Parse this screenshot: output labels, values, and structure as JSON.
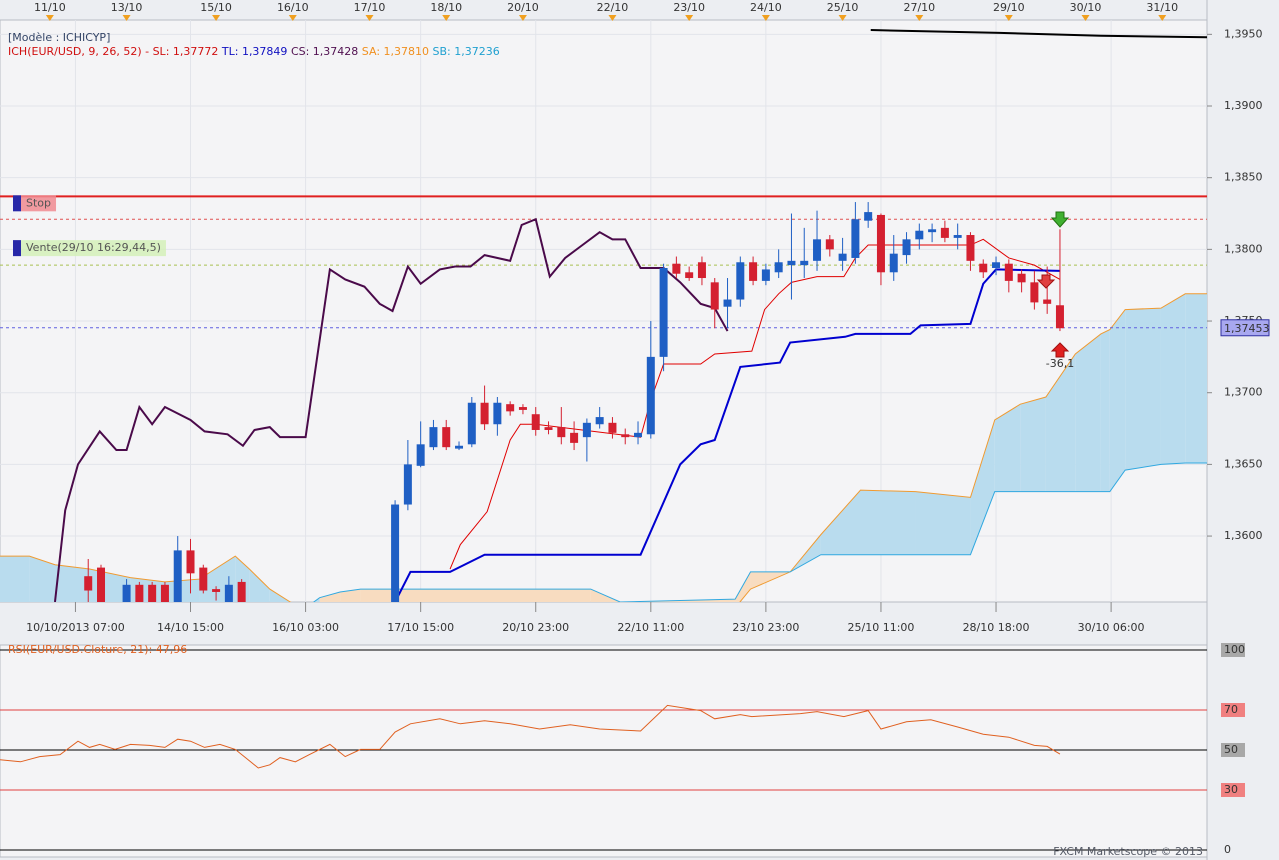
{
  "chart_data": [
    {
      "type": "candlestick",
      "header": "[Modèle : ICHICYP]",
      "indicator_label": {
        "name": "ICH(EUR/USD, 9, 26, 52) -",
        "sl": "SL: 1,37772",
        "tl": "TL: 1,37849",
        "cs": "CS: 1,37428",
        "sa": "SA: 1,37810",
        "sb": "SB: 1,37236"
      },
      "indicator_colors": {
        "name": "#d01010",
        "sl": "#d01010",
        "tl": "#1010c0",
        "cs": "#501050",
        "sa": "#f09020",
        "sb": "#20a0d0"
      },
      "top_labels": {
        "x": [
          0,
          6,
          13,
          19,
          25,
          31,
          37,
          44,
          50,
          56,
          62,
          68,
          75,
          81,
          87
        ],
        "labels": [
          "11/10",
          "13/10",
          "15/10",
          "16/10",
          "17/10",
          "18/10",
          "20/10",
          "22/10",
          "23/10",
          "24/10",
          "25/10",
          "27/10",
          "29/10",
          "30/10",
          "31/10"
        ],
        "marker_color": "#f0a020"
      },
      "xlim": [
        -3.9,
        90.5
      ],
      "xticks": [
        {
          "value": 2,
          "label": "10/10/2013 07:00"
        },
        {
          "value": 11,
          "label": "14/10 15:00"
        },
        {
          "value": 20,
          "label": "16/10 03:00"
        },
        {
          "value": 29,
          "label": "17/10 15:00"
        },
        {
          "value": 38,
          "label": "20/10 23:00"
        },
        {
          "value": 47,
          "label": "22/10 11:00"
        },
        {
          "value": 56,
          "label": "23/10 23:00"
        },
        {
          "value": 65,
          "label": "25/10 11:00"
        },
        {
          "value": 74,
          "label": "28/10 18:00"
        },
        {
          "value": 83,
          "label": "30/10 06:00"
        }
      ],
      "ylim": [
        1.3554,
        1.396
      ],
      "yticks": [
        {
          "value": 1.36,
          "label": "1,3600"
        },
        {
          "value": 1.365,
          "label": "1,3650"
        },
        {
          "value": 1.37,
          "label": "1,3700"
        },
        {
          "value": 1.375,
          "label": "1,3750"
        },
        {
          "value": 1.38,
          "label": "1,3800"
        },
        {
          "value": 1.385,
          "label": "1,3850"
        },
        {
          "value": 1.39,
          "label": "1,3900"
        },
        {
          "value": 1.395,
          "label": "1,3950"
        }
      ],
      "grid": true,
      "candles": {
        "x": [
          3,
          4,
          6,
          7,
          8,
          9,
          10,
          11,
          12,
          13,
          14,
          15,
          27,
          28,
          29,
          30,
          31,
          32,
          33,
          34,
          35,
          36,
          37,
          38,
          39,
          40,
          41,
          42,
          43,
          44,
          45,
          46,
          47,
          48,
          49,
          50,
          51,
          52,
          53,
          54,
          55,
          56,
          57,
          58,
          59,
          60,
          61,
          62,
          63,
          64,
          65,
          66,
          67,
          68,
          69,
          70,
          71,
          72,
          73,
          74,
          75,
          76,
          77,
          78,
          79
        ],
        "open": [
          1.3572,
          1.3578,
          1.3545,
          1.3566,
          1.3566,
          1.3566,
          1.355,
          1.359,
          1.3578,
          1.3563,
          1.3545,
          1.3568,
          1.354,
          1.3622,
          1.3649,
          1.3662,
          1.3676,
          1.3661,
          1.3664,
          1.3693,
          1.3678,
          1.3692,
          1.369,
          1.3685,
          1.3676,
          1.3676,
          1.3672,
          1.3669,
          1.3678,
          1.3679,
          1.3671,
          1.3669,
          1.3671,
          1.3725,
          1.379,
          1.3784,
          1.3791,
          1.3777,
          1.376,
          1.3765,
          1.3791,
          1.3778,
          1.3784,
          1.3789,
          1.3789,
          1.3792,
          1.3807,
          1.3792,
          1.3794,
          1.382,
          1.3824,
          1.3784,
          1.3796,
          1.3807,
          1.3812,
          1.3815,
          1.3808,
          1.381,
          1.379,
          1.3787,
          1.379,
          1.3783,
          1.3777,
          1.3765,
          1.3761
        ],
        "high": [
          1.3584,
          1.358,
          1.357,
          1.3568,
          1.3568,
          1.3568,
          1.36,
          1.3598,
          1.358,
          1.3565,
          1.3572,
          1.357,
          1.3625,
          1.3667,
          1.368,
          1.3681,
          1.3681,
          1.3666,
          1.3697,
          1.3705,
          1.3697,
          1.3694,
          1.3692,
          1.369,
          1.368,
          1.369,
          1.368,
          1.3682,
          1.369,
          1.3683,
          1.3675,
          1.368,
          1.375,
          1.379,
          1.3795,
          1.3788,
          1.3795,
          1.378,
          1.378,
          1.3795,
          1.3795,
          1.379,
          1.38,
          1.3825,
          1.3815,
          1.3827,
          1.381,
          1.3808,
          1.3833,
          1.3833,
          1.3825,
          1.381,
          1.3812,
          1.3818,
          1.3818,
          1.382,
          1.3818,
          1.3812,
          1.3793,
          1.3795,
          1.3793,
          1.3786,
          1.3785,
          1.3788,
          1.3814
        ],
        "low": [
          1.354,
          1.354,
          1.354,
          1.354,
          1.354,
          1.354,
          1.354,
          1.356,
          1.356,
          1.3555,
          1.354,
          1.354,
          1.354,
          1.3618,
          1.3648,
          1.366,
          1.366,
          1.366,
          1.3662,
          1.3674,
          1.367,
          1.3684,
          1.3685,
          1.367,
          1.3671,
          1.3664,
          1.366,
          1.3652,
          1.3675,
          1.3668,
          1.3664,
          1.3664,
          1.3668,
          1.3715,
          1.378,
          1.3778,
          1.3775,
          1.3745,
          1.3745,
          1.376,
          1.3775,
          1.3775,
          1.378,
          1.3765,
          1.378,
          1.3785,
          1.3795,
          1.3785,
          1.379,
          1.3815,
          1.3775,
          1.3778,
          1.379,
          1.38,
          1.3805,
          1.3805,
          1.38,
          1.3785,
          1.378,
          1.3782,
          1.377,
          1.377,
          1.3758,
          1.3755,
          1.3743
        ],
        "close": [
          1.3562,
          1.3548,
          1.3566,
          1.355,
          1.355,
          1.355,
          1.359,
          1.3574,
          1.3562,
          1.3561,
          1.3566,
          1.355,
          1.3622,
          1.365,
          1.3664,
          1.3676,
          1.3662,
          1.3663,
          1.3693,
          1.3678,
          1.3693,
          1.3687,
          1.3688,
          1.3674,
          1.3674,
          1.3669,
          1.3665,
          1.3679,
          1.3683,
          1.3672,
          1.3669,
          1.3672,
          1.3725,
          1.3787,
          1.3783,
          1.378,
          1.378,
          1.3758,
          1.3765,
          1.3791,
          1.3778,
          1.3786,
          1.3791,
          1.3792,
          1.3792,
          1.3807,
          1.38,
          1.3797,
          1.3821,
          1.3826,
          1.3784,
          1.3797,
          1.3807,
          1.3813,
          1.3814,
          1.3808,
          1.381,
          1.3792,
          1.3784,
          1.3791,
          1.3778,
          1.3777,
          1.3763,
          1.3762,
          1.3745
        ],
        "up_color": "#1f5fc4",
        "down_color": "#d42030"
      },
      "cloud": {
        "x": [
          -3.9,
          -1.6,
          0.4,
          3.1,
          6.3,
          9.0,
          11.7,
          14.5,
          15.6,
          17.2,
          18.8,
          21.1,
          22.7,
          24.3,
          42.3,
          44.6,
          53.6,
          54.8,
          57.9,
          60.3,
          63.4,
          67.7,
          72.0,
          73.9,
          75.9,
          77.9,
          80.2,
          82.2,
          82.9,
          84.1,
          86.9,
          88.8,
          90.5
        ],
        "a": [
          1.3586,
          1.3586,
          1.358,
          1.3577,
          1.3571,
          1.3568,
          1.357,
          1.3586,
          1.3577,
          1.3563,
          1.3554,
          1.3545,
          1.3545,
          1.3545,
          1.3545,
          1.3545,
          1.355,
          1.3563,
          1.3575,
          1.3601,
          1.3632,
          1.3631,
          1.3627,
          1.3681,
          1.3692,
          1.3697,
          1.3727,
          1.3741,
          1.3744,
          1.3758,
          1.3759,
          1.3769,
          1.3769
        ],
        "b": [
          1.3542,
          1.3542,
          1.3542,
          1.3542,
          1.3542,
          1.3542,
          1.3542,
          1.3542,
          1.3542,
          1.3542,
          1.3542,
          1.3557,
          1.3561,
          1.3563,
          1.3563,
          1.3554,
          1.3556,
          1.3575,
          1.3575,
          1.3587,
          1.3587,
          1.3587,
          1.3587,
          1.3631,
          1.3631,
          1.3631,
          1.3631,
          1.3631,
          1.3631,
          1.3646,
          1.365,
          1.3651,
          1.3651
        ],
        "a_color": "#f09a30",
        "b_color": "#30a8e0",
        "up_fill": "#b9dcee",
        "down_fill": "#f8dcc0"
      },
      "lines": [
        {
          "color": "#4a0a4a",
          "width": 2,
          "x": [
            0.4,
            1.2,
            2.2,
            3.9,
            5.2,
            6.0,
            7.0,
            8.0,
            9.0,
            11.0,
            12.1,
            13.9,
            15.1,
            16.0,
            17.2,
            18.0,
            20.0,
            21.9,
            23.1,
            24.6,
            25.8,
            26.8,
            28.0,
            29.0,
            30.5,
            31.7,
            32.9,
            34.0,
            36.0,
            36.9,
            38.0,
            39.1,
            40.3,
            41.5,
            43.0,
            44.0,
            45.0,
            46.2,
            48.0,
            49.3,
            50.9,
            52.0,
            53.0
          ],
          "values": [
            1.3554,
            1.3618,
            1.365,
            1.3673,
            1.366,
            1.366,
            1.369,
            1.3678,
            1.369,
            1.3681,
            1.3673,
            1.3671,
            1.3663,
            1.3674,
            1.3676,
            1.3669,
            1.3669,
            1.3786,
            1.3779,
            1.3774,
            1.3762,
            1.3757,
            1.3788,
            1.3776,
            1.3786,
            1.3788,
            1.3788,
            1.3796,
            1.3792,
            1.3817,
            1.3821,
            1.3781,
            1.3794,
            1.3802,
            1.3812,
            1.3807,
            1.3807,
            1.3787,
            1.3787,
            1.3777,
            1.3762,
            1.3759,
            1.3743
          ]
        },
        {
          "color": "#e00000",
          "width": 1,
          "x": [
            31.3,
            32.1,
            34.2,
            36.0,
            36.8,
            38.0,
            46.2,
            47.0,
            48.0,
            50.9,
            52.0,
            54.9,
            55.9,
            57.0,
            58.0,
            60.0,
            62.1,
            63.0,
            64.0,
            72.0,
            73.0,
            75.0,
            77.0,
            79.0
          ],
          "values": [
            1.3577,
            1.3594,
            1.3617,
            1.3667,
            1.3678,
            1.3678,
            1.3669,
            1.3695,
            1.372,
            1.372,
            1.3727,
            1.3729,
            1.3758,
            1.3769,
            1.3777,
            1.3781,
            1.3781,
            1.3794,
            1.3803,
            1.3803,
            1.3807,
            1.3794,
            1.3789,
            1.3779
          ]
        },
        {
          "color": "#0000d0",
          "width": 2,
          "x": [
            27.0,
            28.2,
            31.3,
            34.0,
            46.2,
            49.3,
            50.9,
            52.0,
            54.0,
            57.1,
            57.9,
            62.2,
            63.0,
            67.3,
            68.1,
            72.0,
            73.0,
            74.0,
            79.0
          ],
          "values": [
            1.3554,
            1.3575,
            1.3575,
            1.3587,
            1.3587,
            1.365,
            1.3664,
            1.3667,
            1.3718,
            1.3721,
            1.3735,
            1.3739,
            1.3741,
            1.3741,
            1.3747,
            1.3748,
            1.3776,
            1.3786,
            1.3785
          ]
        },
        {
          "color": "#000000",
          "width": 2,
          "x": [
            64.2,
            74.3,
            82.2,
            90.5
          ],
          "values": [
            1.3953,
            1.3951,
            1.3949,
            1.3948
          ]
        }
      ],
      "levels": [
        {
          "value": 1.3837,
          "label": "Stop",
          "color": "#e02020",
          "style": "solid",
          "label_fill": "#f08a90"
        },
        {
          "value": 1.3821,
          "color": "#e05050",
          "style": "dashed"
        },
        {
          "value": 1.3789,
          "label": "Vente(29/10 16:29,44,5)",
          "color": "#a8c050",
          "style": "dashed",
          "label_fill": "#d4f0b8"
        },
        {
          "value": 1.37453,
          "label": "1,37453",
          "color": "#6060e0",
          "style": "dashed",
          "label_fill": "#a8a8f0"
        }
      ],
      "signal_label": "-36,1"
    },
    {
      "type": "line",
      "title": "RSI(EUR/USD.Cloture, 21): 47,96",
      "color": "#e06020",
      "xlim": [
        -3.9,
        90.5
      ],
      "x": [
        -3.9,
        -2.3,
        -0.8,
        0.8,
        2.2,
        3.1,
        3.9,
        5.1,
        6.3,
        7.8,
        9.0,
        10.0,
        11.0,
        12.1,
        13.3,
        14.5,
        15.3,
        16.3,
        17.2,
        18.0,
        19.2,
        20.3,
        21.9,
        23.1,
        24.3,
        25.8,
        27.0,
        28.2,
        30.5,
        32.1,
        34.0,
        36.0,
        38.3,
        40.7,
        43.0,
        46.2,
        48.3,
        50.9,
        52.0,
        54.0,
        54.9,
        58.7,
        60.0,
        62.1,
        64.0,
        65.0,
        67.0,
        68.9,
        71.0,
        73.0,
        75.0,
        77.0,
        78.0,
        79.0
      ],
      "values": [
        45.1,
        44.1,
        46.7,
        47.7,
        54.4,
        51.3,
        52.8,
        50.3,
        52.8,
        52.3,
        51.3,
        55.4,
        54.4,
        51.3,
        52.8,
        50.3,
        46.2,
        41.0,
        42.6,
        46.2,
        44.1,
        47.7,
        52.8,
        46.7,
        50.3,
        50.3,
        59.0,
        63.1,
        65.6,
        63.1,
        64.6,
        63.1,
        60.5,
        62.6,
        60.5,
        59.5,
        72.3,
        69.7,
        65.6,
        67.7,
        66.7,
        68.2,
        69.2,
        66.7,
        69.7,
        60.5,
        64.1,
        65.1,
        61.5,
        57.9,
        56.4,
        52.3,
        51.8,
        47.96
      ],
      "ylim": [
        -3.5,
        102.5
      ],
      "yticks": [
        0,
        30,
        50,
        70,
        100
      ],
      "tick_line_colors": [
        "#000000",
        "#e04040",
        "#000000",
        "#e04040",
        "#000000"
      ],
      "tick_label_fills": [
        "#eceef2",
        "#f08080",
        "#a8a8a8",
        "#f08080",
        "#a8a8a8"
      ]
    }
  ],
  "footer": "FXCM Marketscope © 2013"
}
